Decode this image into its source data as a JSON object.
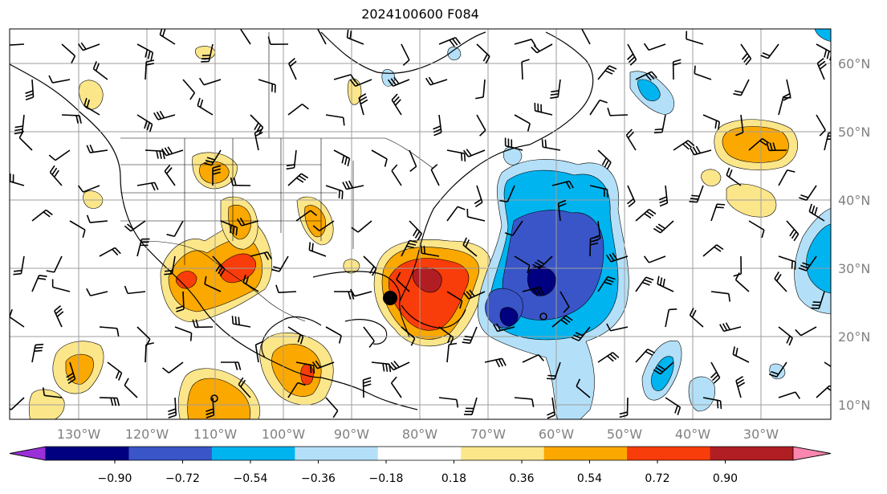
{
  "title": "2024100600 F084",
  "map": {
    "lon_labels": [
      "130°W",
      "120°W",
      "110°W",
      "100°W",
      "90°W",
      "80°W",
      "70°W",
      "60°W",
      "50°W",
      "40°W",
      "30°W"
    ],
    "lat_labels": [
      "60°N",
      "50°N",
      "40°N",
      "30°N",
      "20°N",
      "10°N"
    ],
    "grid_color": "#9e9e9e"
  },
  "colorbar": {
    "ticks": [
      "−0.90",
      "−0.72",
      "−0.54",
      "−0.36",
      "−0.18",
      "0.18",
      "0.36",
      "0.54",
      "0.72",
      "0.90"
    ],
    "colors": {
      "under": "#9b30d9",
      "bins": [
        "#000080",
        "#3a55c8",
        "#00b4f0",
        "#b3e0f8",
        "#ffffff",
        "#fce68a",
        "#fba800",
        "#f83c0a",
        "#b01e23"
      ],
      "over": "#fb86b0"
    }
  },
  "markers": [
    {
      "type": "filled-dot",
      "label": ""
    },
    {
      "type": "open-circle",
      "label": ""
    },
    {
      "type": "open-circle",
      "label": ""
    }
  ]
}
